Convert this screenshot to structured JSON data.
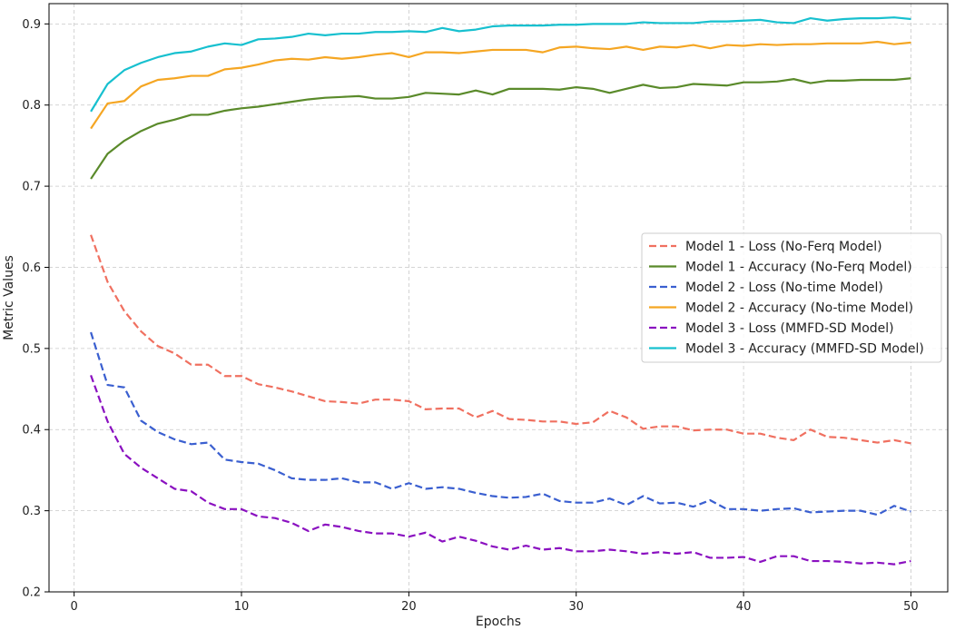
{
  "chart_data": {
    "type": "line",
    "title": "",
    "xlabel": "Epochs",
    "ylabel": "Metric Values",
    "xlim": [
      -1.5,
      52.2
    ],
    "ylim": [
      0.2,
      0.925
    ],
    "xticks": [
      0,
      10,
      20,
      30,
      40,
      50
    ],
    "yticks": [
      0.2,
      0.3,
      0.4,
      0.5,
      0.6,
      0.7,
      0.8,
      0.9
    ],
    "grid": true,
    "legend_position": "center-right",
    "x": [
      1,
      2,
      3,
      4,
      5,
      6,
      7,
      8,
      9,
      10,
      11,
      12,
      13,
      14,
      15,
      16,
      17,
      18,
      19,
      20,
      21,
      22,
      23,
      24,
      25,
      26,
      27,
      28,
      29,
      30,
      31,
      32,
      33,
      34,
      35,
      36,
      37,
      38,
      39,
      40,
      41,
      42,
      43,
      44,
      45,
      46,
      47,
      48,
      49,
      50
    ],
    "series": [
      {
        "name": "Model 1 - Loss (No-Ferq Model)",
        "color": "#f07060",
        "dashed": true,
        "values": [
          0.64,
          0.582,
          0.546,
          0.521,
          0.503,
          0.494,
          0.48,
          0.48,
          0.466,
          0.466,
          0.456,
          0.452,
          0.447,
          0.441,
          0.435,
          0.434,
          0.432,
          0.437,
          0.437,
          0.435,
          0.425,
          0.426,
          0.426,
          0.415,
          0.423,
          0.413,
          0.412,
          0.41,
          0.41,
          0.407,
          0.409,
          0.423,
          0.415,
          0.401,
          0.404,
          0.404,
          0.399,
          0.4,
          0.4,
          0.395,
          0.395,
          0.39,
          0.387,
          0.4,
          0.391,
          0.39,
          0.387,
          0.384,
          0.387,
          0.383
        ]
      },
      {
        "name": "Model 1 - Accuracy (No-Ferq Model)",
        "color": "#5a8a2a",
        "dashed": false,
        "values": [
          0.709,
          0.74,
          0.756,
          0.768,
          0.777,
          0.782,
          0.788,
          0.788,
          0.793,
          0.796,
          0.798,
          0.801,
          0.804,
          0.807,
          0.809,
          0.81,
          0.811,
          0.808,
          0.808,
          0.81,
          0.815,
          0.814,
          0.813,
          0.818,
          0.813,
          0.82,
          0.82,
          0.82,
          0.819,
          0.822,
          0.82,
          0.815,
          0.82,
          0.825,
          0.821,
          0.822,
          0.826,
          0.825,
          0.824,
          0.828,
          0.828,
          0.829,
          0.832,
          0.827,
          0.83,
          0.83,
          0.831,
          0.831,
          0.831,
          0.833
        ]
      },
      {
        "name": "Model 2 - Loss (No-time Model)",
        "color": "#3a5fd0",
        "dashed": true,
        "values": [
          0.52,
          0.455,
          0.452,
          0.411,
          0.397,
          0.388,
          0.382,
          0.384,
          0.363,
          0.36,
          0.358,
          0.35,
          0.34,
          0.338,
          0.338,
          0.34,
          0.335,
          0.335,
          0.327,
          0.334,
          0.327,
          0.329,
          0.327,
          0.322,
          0.318,
          0.316,
          0.317,
          0.321,
          0.312,
          0.31,
          0.31,
          0.315,
          0.307,
          0.318,
          0.309,
          0.31,
          0.305,
          0.313,
          0.302,
          0.302,
          0.3,
          0.302,
          0.303,
          0.298,
          0.299,
          0.3,
          0.3,
          0.295,
          0.306,
          0.299
        ]
      },
      {
        "name": "Model 2 - Accuracy (No-time Model)",
        "color": "#f5a623",
        "dashed": false,
        "values": [
          0.771,
          0.802,
          0.805,
          0.823,
          0.831,
          0.833,
          0.836,
          0.836,
          0.844,
          0.846,
          0.85,
          0.855,
          0.857,
          0.856,
          0.859,
          0.857,
          0.859,
          0.862,
          0.864,
          0.859,
          0.865,
          0.865,
          0.864,
          0.866,
          0.868,
          0.868,
          0.868,
          0.865,
          0.871,
          0.872,
          0.87,
          0.869,
          0.872,
          0.868,
          0.872,
          0.871,
          0.874,
          0.87,
          0.874,
          0.873,
          0.875,
          0.874,
          0.875,
          0.875,
          0.876,
          0.876,
          0.876,
          0.878,
          0.875,
          0.877
        ]
      },
      {
        "name": "Model 3 - Loss (MMFD-SD Model)",
        "color": "#8a10c0",
        "dashed": true,
        "values": [
          0.467,
          0.41,
          0.37,
          0.353,
          0.34,
          0.327,
          0.324,
          0.31,
          0.302,
          0.302,
          0.293,
          0.291,
          0.285,
          0.275,
          0.283,
          0.28,
          0.275,
          0.272,
          0.272,
          0.268,
          0.273,
          0.262,
          0.268,
          0.263,
          0.256,
          0.252,
          0.257,
          0.252,
          0.254,
          0.25,
          0.25,
          0.252,
          0.25,
          0.247,
          0.249,
          0.247,
          0.249,
          0.242,
          0.242,
          0.243,
          0.237,
          0.244,
          0.244,
          0.238,
          0.238,
          0.237,
          0.235,
          0.236,
          0.234,
          0.238
        ]
      },
      {
        "name": "Model 3 - Accuracy (MMFD-SD Model)",
        "color": "#17c0cf",
        "dashed": false,
        "values": [
          0.792,
          0.826,
          0.843,
          0.852,
          0.859,
          0.864,
          0.866,
          0.872,
          0.876,
          0.874,
          0.881,
          0.882,
          0.884,
          0.888,
          0.886,
          0.888,
          0.888,
          0.89,
          0.89,
          0.891,
          0.89,
          0.895,
          0.891,
          0.893,
          0.897,
          0.898,
          0.898,
          0.898,
          0.899,
          0.899,
          0.9,
          0.9,
          0.9,
          0.902,
          0.901,
          0.901,
          0.901,
          0.903,
          0.903,
          0.904,
          0.905,
          0.902,
          0.901,
          0.907,
          0.904,
          0.906,
          0.907,
          0.907,
          0.908,
          0.906
        ]
      }
    ]
  }
}
